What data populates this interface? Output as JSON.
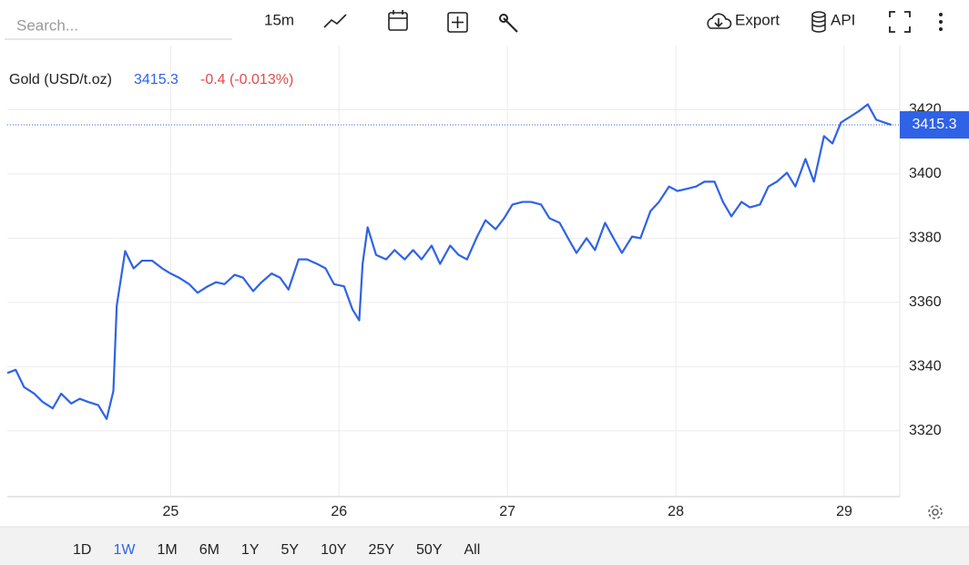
{
  "toolbar": {
    "search_placeholder": "Search...",
    "interval": "15m",
    "export": "Export",
    "api": "API"
  },
  "ranges": {
    "items": [
      "1D",
      "1W",
      "1M",
      "6M",
      "1Y",
      "5Y",
      "10Y",
      "25Y",
      "50Y",
      "All"
    ],
    "active": "1W"
  },
  "chart_data": {
    "type": "line",
    "change": "-0.4 (-0.013%)",
    "x": [
      24.03,
      24.08,
      24.13,
      24.19,
      24.24,
      24.3,
      24.35,
      24.41,
      24.46,
      24.51,
      24.57,
      24.62,
      24.66,
      24.68,
      24.73,
      24.78,
      24.83,
      24.89,
      24.95,
      25.0,
      25.05,
      25.11,
      25.16,
      25.22,
      25.27,
      25.32,
      25.38,
      25.43,
      25.49,
      25.54,
      25.6,
      25.65,
      25.7,
      25.76,
      25.81,
      25.87,
      25.92,
      25.97,
      26.03,
      26.08,
      26.12,
      26.14,
      26.17,
      26.22,
      26.28,
      26.33,
      26.39,
      26.44,
      26.49,
      26.55,
      26.6,
      26.66,
      26.71,
      26.76,
      26.82,
      26.87,
      26.93,
      26.98,
      27.03,
      27.09,
      27.14,
      27.2,
      27.25,
      27.31,
      27.36,
      27.41,
      27.47,
      27.52,
      27.58,
      27.63,
      27.68,
      27.74,
      27.79,
      27.85,
      27.9,
      27.96,
      28.01,
      28.06,
      28.12,
      28.17,
      28.23,
      28.28,
      28.33,
      28.39,
      28.44,
      28.5,
      28.55,
      28.6,
      28.66,
      28.71,
      28.77,
      28.82,
      28.88,
      28.93,
      28.98,
      29.04,
      29.09,
      29.14,
      29.19,
      29.24,
      29.28
    ],
    "series": [
      {
        "name": "Gold (USD/t.oz)",
        "color": "#2f62e6",
        "values": [
          3338,
          3339,
          3333.6,
          3331.6,
          3329,
          3327,
          3331.6,
          3328.5,
          3330,
          3329,
          3328,
          3323.7,
          3332.4,
          3359,
          3376,
          3370.6,
          3373,
          3373,
          3370.6,
          3369,
          3367.7,
          3365.7,
          3363,
          3365,
          3366.3,
          3365.7,
          3368.6,
          3367.7,
          3363.5,
          3366.3,
          3369,
          3367.7,
          3364,
          3373.4,
          3373.4,
          3372,
          3370.6,
          3365.7,
          3365,
          3357.8,
          3354.4,
          3372,
          3383.4,
          3374.8,
          3373.4,
          3376.3,
          3373.4,
          3376.3,
          3373.4,
          3377.7,
          3372,
          3377.7,
          3374.8,
          3373.4,
          3380.5,
          3385.6,
          3382.8,
          3386.2,
          3390.5,
          3391.3,
          3391.3,
          3390.5,
          3386.2,
          3384.8,
          3380,
          3375.4,
          3380,
          3376.3,
          3384.8,
          3380,
          3375.4,
          3380.5,
          3380,
          3388.5,
          3391.3,
          3396.1,
          3394.7,
          3395.3,
          3396.1,
          3397.6,
          3397.6,
          3391.3,
          3386.8,
          3391.3,
          3389.6,
          3390.5,
          3396.1,
          3397.6,
          3400.4,
          3396.1,
          3404.7,
          3397.6,
          3411.8,
          3409.5,
          3416,
          3418,
          3419.7,
          3421.7,
          3416.9,
          3416,
          3415.3
        ]
      }
    ],
    "xlim": [
      24.03,
      29.33
    ],
    "xticks": [
      25,
      26,
      27,
      28,
      29
    ],
    "ylim": [
      3299.5,
      3440
    ],
    "yticks": [
      3320,
      3340,
      3360,
      3380,
      3400,
      3420
    ],
    "grid": true
  }
}
